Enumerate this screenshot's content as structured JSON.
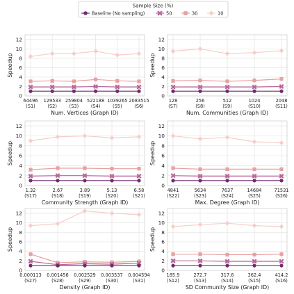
{
  "legend": {
    "title": "Sample Size (%)",
    "placement": "top-center",
    "entries": [
      {
        "label": "Baseline (No sampling)",
        "color": "#6b2e6e",
        "marker": "circle"
      },
      {
        "label": "50",
        "color": "#b8669a",
        "marker": "x"
      },
      {
        "label": "30",
        "color": "#e8a0a0",
        "marker": "square"
      },
      {
        "label": "10",
        "color": "#f5cfc8",
        "marker": "diamond"
      }
    ]
  },
  "chart_data": [
    {
      "type": "line",
      "xlabel": "Num. Vertices (Graph ID)",
      "ylabel": "Speedup",
      "ylim": [
        0,
        13
      ],
      "yticks": [
        0,
        2,
        4,
        6,
        8,
        10,
        12
      ],
      "grid": true,
      "categories": [
        "64496\n(S1)",
        "129533\n(S2)",
        "259804\n(S3)",
        "522188\n(S4)",
        "1039265\n(S5)",
        "2083515\n(S6)"
      ],
      "series": [
        {
          "name": "Baseline (No sampling)",
          "values": [
            1.0,
            1.0,
            1.0,
            1.0,
            1.0,
            1.0
          ]
        },
        {
          "name": "50",
          "values": [
            1.9,
            1.9,
            1.9,
            2.0,
            1.9,
            1.9
          ]
        },
        {
          "name": "30",
          "values": [
            3.1,
            3.2,
            3.1,
            3.5,
            3.2,
            3.1
          ]
        },
        {
          "name": "10",
          "values": [
            8.4,
            9.0,
            9.0,
            9.5,
            8.7,
            9.0
          ]
        }
      ]
    },
    {
      "type": "line",
      "xlabel": "Num. Communities (Graph ID)",
      "ylabel": "Speedup",
      "ylim": [
        0,
        13
      ],
      "yticks": [
        0,
        2,
        4,
        6,
        8,
        10,
        12
      ],
      "grid": true,
      "categories": [
        "128\n(S7)",
        "256\n(S8)",
        "512\n(S9)",
        "1024\n(S10)",
        "2048\n(S11)"
      ],
      "series": [
        {
          "name": "Baseline (No sampling)",
          "values": [
            1.0,
            1.0,
            1.0,
            1.0,
            1.0
          ]
        },
        {
          "name": "50",
          "values": [
            1.9,
            1.9,
            1.9,
            1.9,
            2.0
          ]
        },
        {
          "name": "30",
          "values": [
            3.2,
            3.3,
            3.1,
            3.3,
            3.6
          ]
        },
        {
          "name": "10",
          "values": [
            9.5,
            10.0,
            9.0,
            9.2,
            9.6
          ]
        }
      ]
    },
    {
      "type": "line",
      "xlabel": "Community Strength (Graph ID)",
      "ylabel": "Speedup",
      "ylim": [
        0,
        13
      ],
      "yticks": [
        0,
        2,
        4,
        6,
        8,
        10,
        12
      ],
      "grid": true,
      "categories": [
        "1.32\n(S17)",
        "2.67\n(S18)",
        "3.89\n(S19)",
        "5.13\n(S20)",
        "6.58\n(S21)"
      ],
      "series": [
        {
          "name": "Baseline (No sampling)",
          "values": [
            1.0,
            1.0,
            1.0,
            1.0,
            1.0
          ]
        },
        {
          "name": "50",
          "values": [
            1.9,
            2.0,
            2.0,
            1.9,
            1.9
          ]
        },
        {
          "name": "30",
          "values": [
            3.2,
            3.5,
            3.5,
            3.4,
            3.4
          ]
        },
        {
          "name": "10",
          "values": [
            9.0,
            9.8,
            10.0,
            9.6,
            9.8
          ]
        }
      ]
    },
    {
      "type": "line",
      "xlabel": "Max. Degree (Graph ID)",
      "ylabel": "Speedup",
      "ylim": [
        0,
        13
      ],
      "yticks": [
        0,
        2,
        4,
        6,
        8,
        10,
        12
      ],
      "grid": true,
      "categories": [
        "4841\n(S22)",
        "5634\n(S23)",
        "7637\n(S24)",
        "14684\n(S25)",
        "71531\n(S26)"
      ],
      "series": [
        {
          "name": "Baseline (No sampling)",
          "values": [
            1.0,
            1.0,
            1.0,
            1.0,
            1.0
          ]
        },
        {
          "name": "50",
          "values": [
            2.0,
            1.9,
            1.9,
            1.9,
            1.9
          ]
        },
        {
          "name": "30",
          "values": [
            3.5,
            3.3,
            3.3,
            3.3,
            3.3
          ]
        },
        {
          "name": "10",
          "values": [
            10.0,
            9.4,
            9.7,
            8.8,
            8.6
          ]
        }
      ]
    },
    {
      "type": "line",
      "xlabel": "Density (Graph ID)",
      "ylabel": "Speedup",
      "ylim": [
        0,
        13
      ],
      "yticks": [
        0,
        2,
        4,
        6,
        8,
        10,
        12
      ],
      "grid": true,
      "categories": [
        "0.000113\n(S27)",
        "0.001456\n(S28)",
        "0.002529\n(S29)",
        "0.003537\n(S30)",
        "0.004594\n(S31)"
      ],
      "series": [
        {
          "name": "Baseline (No sampling)",
          "values": [
            1.0,
            1.0,
            1.0,
            1.0,
            1.0
          ]
        },
        {
          "name": "50",
          "values": [
            1.9,
            1.2,
            1.4,
            1.3,
            1.5
          ]
        },
        {
          "name": "30",
          "values": [
            3.4,
            1.6,
            1.8,
            1.7,
            1.9
          ]
        },
        {
          "name": "10",
          "values": [
            9.4,
            9.8,
            12.5,
            12.0,
            11.7
          ]
        }
      ]
    },
    {
      "type": "line",
      "xlabel": "SD Community Size (Graph ID)",
      "ylabel": "Speedup",
      "ylim": [
        0,
        13
      ],
      "yticks": [
        0,
        2,
        4,
        6,
        8,
        10,
        12
      ],
      "grid": true,
      "categories": [
        "185.9\n(S12)",
        "272.7\n(S13)",
        "317.6\n(S14)",
        "362.4\n(S15)",
        "414.2\n(S16)"
      ],
      "series": [
        {
          "name": "Baseline (No sampling)",
          "values": [
            1.0,
            1.0,
            1.0,
            1.0,
            1.0
          ]
        },
        {
          "name": "50",
          "values": [
            2.0,
            2.0,
            1.9,
            1.9,
            1.9
          ]
        },
        {
          "name": "30",
          "values": [
            3.4,
            3.4,
            3.3,
            3.3,
            3.4
          ]
        },
        {
          "name": "10",
          "values": [
            9.2,
            9.6,
            9.9,
            9.4,
            9.2
          ]
        }
      ]
    }
  ]
}
